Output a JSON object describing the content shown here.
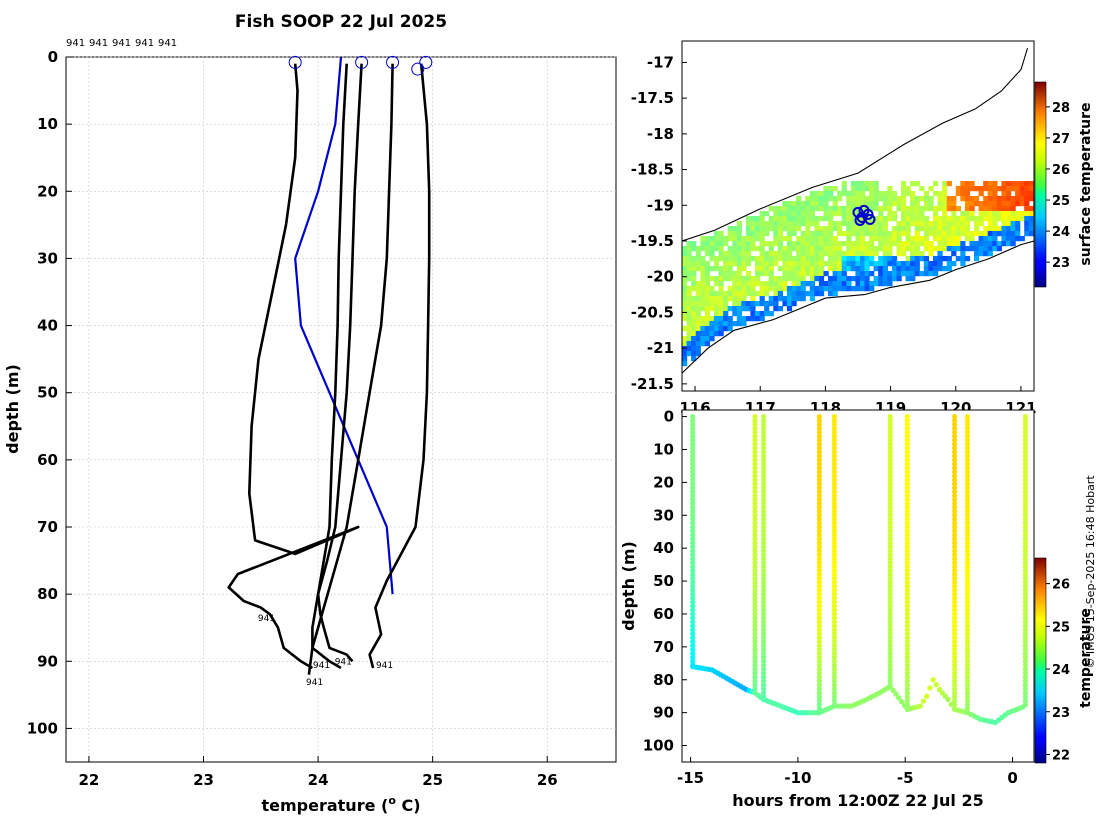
{
  "figure": {
    "title": "Fish SOOP 22 Jul 2025",
    "station_labels": [
      "941",
      "941",
      "941",
      "941",
      "941"
    ],
    "credit": "© IMOS 15-Sep-2025 16:48 Hobart"
  },
  "chart_data": [
    {
      "id": "profiles",
      "type": "line",
      "xlabel": "temperature (° C)",
      "xlabel_main": "temperature (",
      "xlabel_sup": "o",
      "xlabel_tail": " C)",
      "ylabel": "depth (m)",
      "xlim": [
        21.8,
        26.6
      ],
      "ylim": [
        105,
        0
      ],
      "xticks": [
        22,
        23,
        24,
        25,
        26
      ],
      "yticks": [
        0,
        10,
        20,
        30,
        40,
        50,
        60,
        70,
        80,
        90,
        100
      ],
      "grid": true,
      "surface_markers": [
        {
          "temp": 23.8,
          "depth": 0.8
        },
        {
          "temp": 24.38,
          "depth": 0.8
        },
        {
          "temp": 24.65,
          "depth": 0.8
        },
        {
          "temp": 24.87,
          "depth": 1.8
        },
        {
          "temp": 24.94,
          "depth": 0.8
        }
      ],
      "end_labels": [
        {
          "text": "941",
          "temp": 23.55,
          "depth": 84
        },
        {
          "text": "941",
          "temp": 24.03,
          "depth": 91
        },
        {
          "text": "941",
          "temp": 24.22,
          "depth": 90.5
        },
        {
          "text": "941",
          "temp": 24.58,
          "depth": 91
        },
        {
          "text": "941",
          "temp": 23.97,
          "depth": 93.5
        }
      ],
      "series": [
        {
          "name": "climatology",
          "color": "#0000cc",
          "temp": [
            24.2,
            24.15,
            24.0,
            23.8,
            23.85,
            24.1,
            24.35,
            24.6,
            24.65
          ],
          "depth": [
            0,
            10,
            20,
            30,
            40,
            50,
            60,
            70,
            80
          ]
        },
        {
          "name": "profile-1",
          "color": "#000000",
          "temp": [
            23.8,
            23.82,
            23.8,
            23.72,
            23.6,
            23.48,
            23.42,
            23.4,
            23.45,
            23.8,
            24.35,
            23.3,
            23.22,
            23.35,
            23.5,
            23.58,
            23.65,
            23.7,
            23.85,
            23.95
          ],
          "depth": [
            1,
            5,
            15,
            25,
            35,
            45,
            55,
            65,
            72,
            74,
            70,
            77,
            79,
            81,
            82,
            83,
            85,
            88,
            90,
            91
          ]
        },
        {
          "name": "profile-2",
          "color": "#000000",
          "temp": [
            24.25,
            24.22,
            24.2,
            24.18,
            24.17,
            24.15,
            24.12,
            24.1,
            24.05,
            24.0,
            24.02,
            24.05,
            24.1,
            24.25,
            24.3
          ],
          "depth": [
            1,
            10,
            20,
            30,
            40,
            50,
            60,
            70,
            75,
            80,
            83,
            85,
            88,
            89,
            90
          ]
        },
        {
          "name": "profile-3",
          "color": "#000000",
          "temp": [
            24.38,
            24.35,
            24.32,
            24.3,
            24.28,
            24.25,
            24.2,
            24.15,
            24.08,
            24.0,
            23.95,
            23.95,
            24.1,
            24.2
          ],
          "depth": [
            1,
            10,
            20,
            30,
            40,
            50,
            60,
            70,
            75,
            80,
            85,
            88,
            90,
            91
          ]
        },
        {
          "name": "profile-4",
          "color": "#000000",
          "temp": [
            24.65,
            24.64,
            24.62,
            24.6,
            24.55,
            24.45,
            24.35,
            24.25,
            24.15,
            24.05,
            23.95,
            23.92
          ],
          "depth": [
            1,
            10,
            20,
            30,
            40,
            50,
            60,
            70,
            76,
            82,
            88,
            92
          ]
        },
        {
          "name": "profile-5",
          "color": "#000000",
          "temp": [
            24.9,
            24.95,
            24.97,
            24.97,
            24.96,
            24.95,
            24.92,
            24.85,
            24.6,
            24.5,
            24.55,
            24.45,
            24.48
          ],
          "depth": [
            1,
            10,
            20,
            30,
            40,
            50,
            60,
            70,
            78,
            82,
            86,
            89,
            91
          ]
        }
      ]
    },
    {
      "id": "map",
      "type": "heatmap",
      "xlim": [
        115.8,
        121.2
      ],
      "ylim": [
        -21.6,
        -16.7
      ],
      "xticks": [
        116,
        117,
        118,
        119,
        120,
        121
      ],
      "yticks": [
        -17,
        -17.5,
        -18,
        -18.5,
        -19,
        -19.5,
        -20,
        -20.5,
        -21,
        -21.5
      ],
      "ytick_labels": [
        "-17",
        "-17.5",
        "-18",
        "-18.5",
        "-19",
        "-19.5",
        "-20",
        "-20.5",
        "-21",
        "-21.5"
      ],
      "colorbar_label": "surface temperature",
      "colorbar_range": [
        22.2,
        28.8
      ],
      "colorbar_ticks": [
        23,
        24,
        25,
        26,
        27,
        28
      ],
      "track_lon": 118.5,
      "track_lat": -19.1,
      "coast_north": [
        [
          115.8,
          -19.5
        ],
        [
          116.3,
          -19.35
        ],
        [
          117.0,
          -19.05
        ],
        [
          117.8,
          -18.75
        ],
        [
          118.5,
          -18.55
        ],
        [
          119.2,
          -18.15
        ],
        [
          119.8,
          -17.85
        ],
        [
          120.3,
          -17.65
        ],
        [
          120.7,
          -17.4
        ],
        [
          121.0,
          -17.1
        ],
        [
          121.1,
          -16.8
        ]
      ],
      "coast_south": [
        [
          115.8,
          -21.35
        ],
        [
          116.2,
          -21.0
        ],
        [
          116.6,
          -20.75
        ],
        [
          117.2,
          -20.6
        ],
        [
          117.6,
          -20.45
        ],
        [
          118.0,
          -20.3
        ],
        [
          118.6,
          -20.25
        ],
        [
          119.0,
          -20.15
        ],
        [
          119.6,
          -20.05
        ],
        [
          120.0,
          -19.9
        ],
        [
          120.5,
          -19.75
        ],
        [
          121.0,
          -19.55
        ],
        [
          121.2,
          -19.5
        ]
      ]
    },
    {
      "id": "section",
      "type": "scatter",
      "xlabel": "hours from 12:00Z 22 Jul 25",
      "ylabel": "depth (m)",
      "xlim": [
        -15.4,
        1.0
      ],
      "ylim": [
        105,
        -2
      ],
      "xticks": [
        -15,
        -10,
        -5,
        0
      ],
      "yticks": [
        0,
        10,
        20,
        30,
        40,
        50,
        60,
        70,
        80,
        90,
        100
      ],
      "colorbar_label": "temperature",
      "colorbar_range": [
        21.8,
        26.6
      ],
      "colorbar_ticks": [
        22,
        23,
        24,
        25,
        26
      ],
      "casts": [
        {
          "t": -14.9,
          "surface_temp": 24.2,
          "bottom_temp": 23.5,
          "bottom_depth": 76
        },
        {
          "t": -12.0,
          "surface_temp": 24.6,
          "bottom_temp": 24.1,
          "bottom_depth": 84
        },
        {
          "t": -11.6,
          "surface_temp": 24.5,
          "bottom_temp": 24.0,
          "bottom_depth": 86
        },
        {
          "t": -9.0,
          "surface_temp": 25.0,
          "bottom_temp": 24.1,
          "bottom_depth": 90
        },
        {
          "t": -8.3,
          "surface_temp": 24.9,
          "bottom_temp": 24.2,
          "bottom_depth": 88
        },
        {
          "t": -5.7,
          "surface_temp": 24.6,
          "bottom_temp": 24.3,
          "bottom_depth": 82
        },
        {
          "t": -4.9,
          "surface_temp": 24.8,
          "bottom_temp": 24.3,
          "bottom_depth": 89
        },
        {
          "t": -2.7,
          "surface_temp": 25.0,
          "bottom_temp": 24.4,
          "bottom_depth": 89
        },
        {
          "t": -2.1,
          "surface_temp": 24.9,
          "bottom_temp": 24.3,
          "bottom_depth": 90
        },
        {
          "t": 0.6,
          "surface_temp": 24.6,
          "bottom_temp": 24.2,
          "bottom_depth": 88
        }
      ],
      "bottom_track": {
        "t": [
          -14.9,
          -14.0,
          -13.2,
          -12.4,
          -12.0,
          -11.6,
          -10.8,
          -10.0,
          -9.0,
          -8.3,
          -7.5,
          -6.8,
          -6.2,
          -5.7,
          -4.9,
          -4.3,
          -4.0,
          -3.7,
          -3.4,
          -3.0,
          -2.7,
          -2.1,
          -1.5,
          -0.8,
          -0.2,
          0.6
        ],
        "depth": [
          76,
          77,
          80,
          83,
          84,
          86,
          88,
          90,
          90,
          88,
          88,
          86,
          84,
          82,
          89,
          88,
          85,
          80,
          83,
          86,
          89,
          90,
          92,
          93,
          90,
          88
        ],
        "temp": [
          23.5,
          23.4,
          23.3,
          23.2,
          24.1,
          24.0,
          24.0,
          23.9,
          24.1,
          24.2,
          24.3,
          24.3,
          24.3,
          24.3,
          24.3,
          24.5,
          24.6,
          24.6,
          24.5,
          24.4,
          24.4,
          24.3,
          24.1,
          24.0,
          24.1,
          24.2
        ]
      }
    }
  ]
}
